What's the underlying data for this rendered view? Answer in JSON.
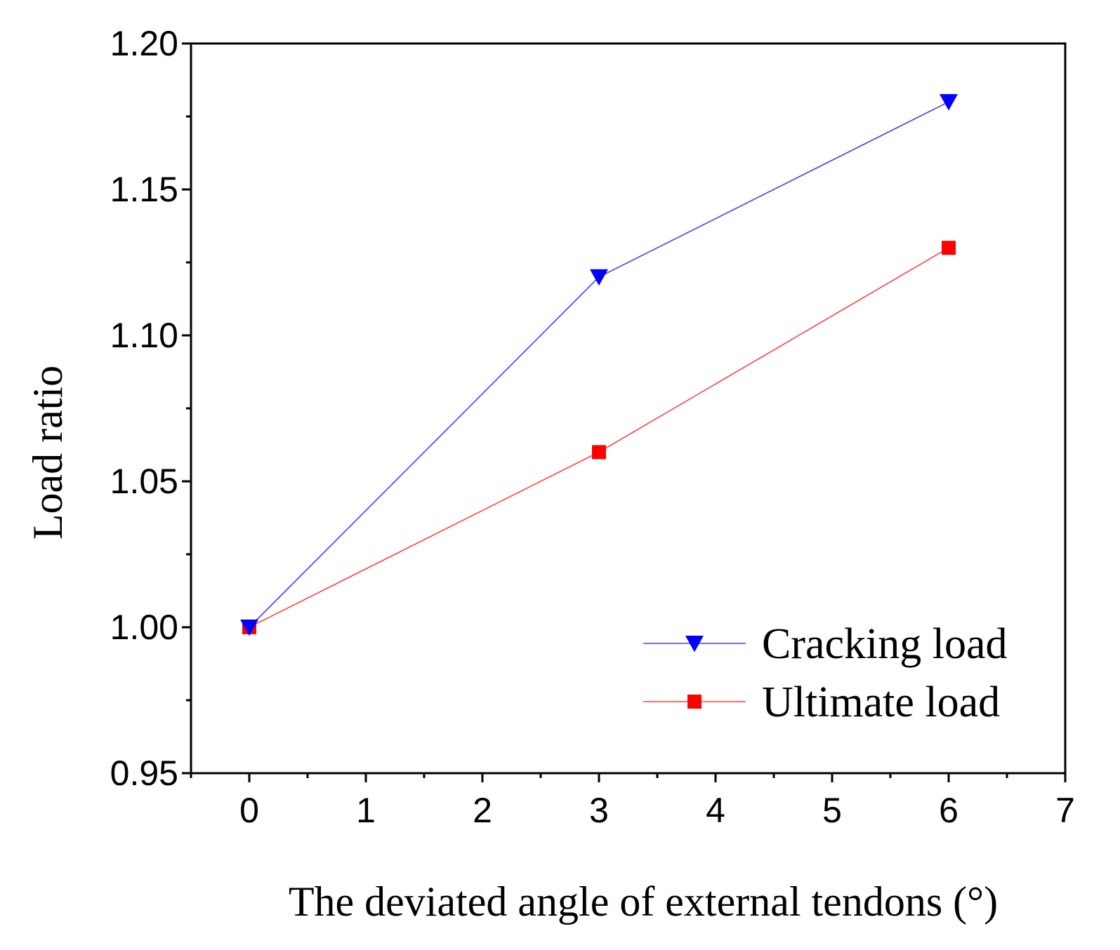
{
  "chart_data": {
    "type": "line",
    "title": "",
    "xlabel": "The deviated angle of external tendons (°)",
    "ylabel": "Load ratio",
    "xlim": [
      -0.5,
      7
    ],
    "ylim": [
      0.95,
      1.2
    ],
    "x_ticks": [
      0,
      1,
      2,
      3,
      4,
      5,
      6,
      7
    ],
    "x_tick_labels": [
      "0",
      "1",
      "2",
      "3",
      "4",
      "5",
      "6",
      "7"
    ],
    "y_ticks": [
      0.95,
      1.0,
      1.05,
      1.1,
      1.15,
      1.2
    ],
    "y_tick_labels": [
      "0.95",
      "1.00",
      "1.05",
      "1.10",
      "1.15",
      "1.20"
    ],
    "grid": false,
    "legend_position": "bottom-right",
    "series": [
      {
        "name": "Cracking load",
        "color": "#0000ff",
        "marker": "triangle-down",
        "x": [
          0,
          3,
          6
        ],
        "values": [
          1.0,
          1.12,
          1.18
        ]
      },
      {
        "name": "Ultimate load",
        "color": "#ff0000",
        "marker": "square",
        "x": [
          0,
          3,
          6
        ],
        "values": [
          1.0,
          1.06,
          1.13
        ]
      }
    ]
  }
}
